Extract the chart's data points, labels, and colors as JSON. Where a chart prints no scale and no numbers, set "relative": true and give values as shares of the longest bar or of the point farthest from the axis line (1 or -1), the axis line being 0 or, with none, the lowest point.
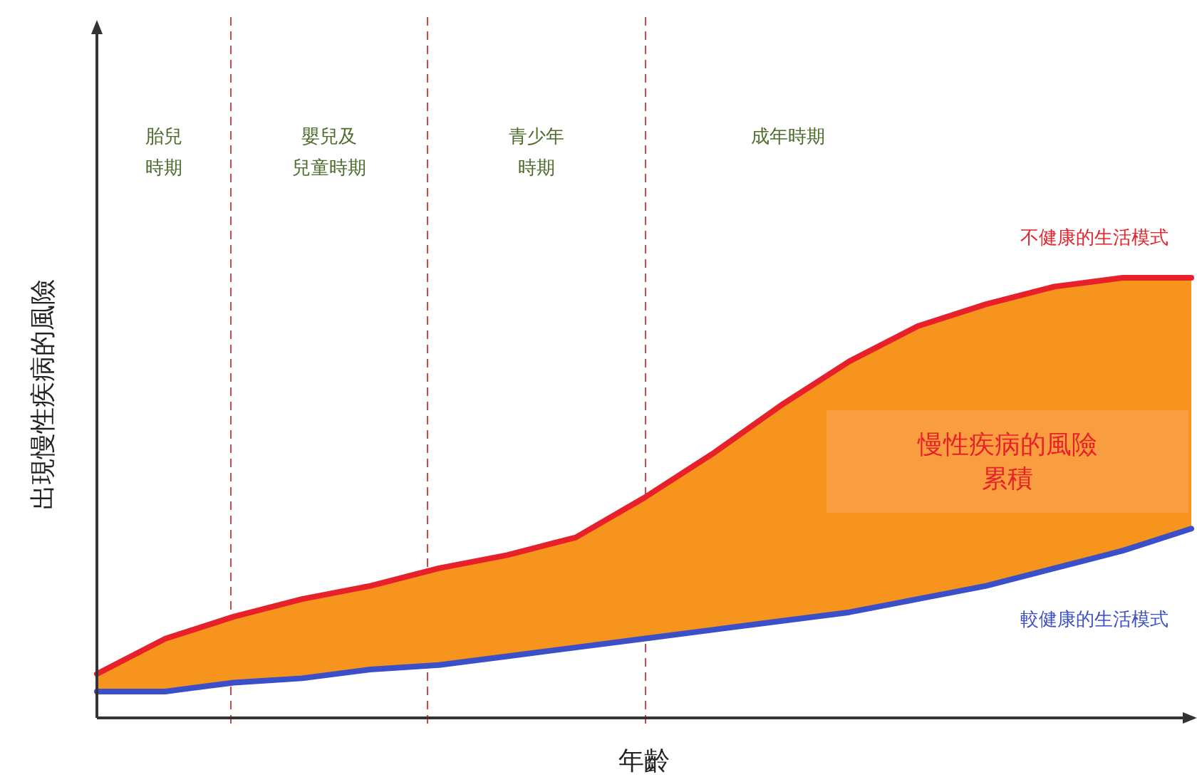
{
  "chart_data": {
    "type": "line",
    "relative": true,
    "xlabel": "年齡",
    "ylabel": "出現慢性疾病的風險",
    "categories": [
      null,
      null,
      null,
      null,
      null,
      null,
      null,
      null,
      null,
      null,
      null,
      null,
      null,
      null,
      null,
      null,
      null
    ],
    "legend": false,
    "line_style": "solid",
    "series": [
      {
        "name": "不健康的生活模式",
        "color": "#e8202a",
        "values": [
          0.1,
          0.18,
          0.23,
          0.27,
          0.3,
          0.34,
          0.37,
          0.41,
          0.5,
          0.6,
          0.71,
          0.81,
          0.89,
          0.94,
          0.98,
          1.0,
          1.0
        ],
        "lower": [
          0.06,
          0.06,
          0.08,
          0.09,
          0.11,
          0.12,
          0.14,
          0.16,
          0.18,
          0.2,
          0.22,
          0.24,
          0.27,
          0.3,
          0.34,
          0.38,
          0.43
        ],
        "upper": [
          0.1,
          0.18,
          0.23,
          0.27,
          0.3,
          0.34,
          0.37,
          0.41,
          0.5,
          0.6,
          0.71,
          0.81,
          0.89,
          0.94,
          0.98,
          1.0,
          1.0
        ]
      },
      {
        "name": "較健康的生活模式",
        "color": "#3a4fc8",
        "values": [
          0.06,
          0.06,
          0.08,
          0.09,
          0.11,
          0.12,
          0.14,
          0.16,
          0.18,
          0.2,
          0.22,
          0.24,
          0.27,
          0.3,
          0.34,
          0.38,
          0.43
        ]
      }
    ],
    "annotations": [
      "胎兒時期",
      "嬰兒及兒童時期",
      "青少年時期",
      "成年時期",
      "慢性疾病的風險累積"
    ]
  }
}
